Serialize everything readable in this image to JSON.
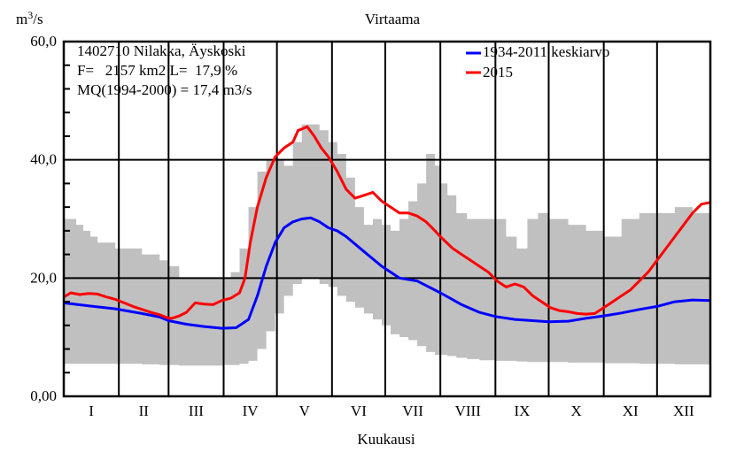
{
  "chart_data": {
    "type": "line",
    "title": "Virtaama",
    "ylabel_base": "m",
    "ylabel_sup": "3",
    "ylabel_rest": "/s",
    "xlabel": "Kuukausi",
    "ylim": [
      0,
      60
    ],
    "xlim": [
      1,
      365
    ],
    "y_ticks": [
      {
        "value": 0,
        "label": "0,00"
      },
      {
        "value": 20,
        "label": "20,0"
      },
      {
        "value": 40,
        "label": "40,0"
      },
      {
        "value": 60,
        "label": "60,0"
      }
    ],
    "y_minor_step": 4,
    "month_labels": [
      "I",
      "II",
      "III",
      "IV",
      "V",
      "VI",
      "VII",
      "VIII",
      "IX",
      "X",
      "XI",
      "XII"
    ],
    "month_starts": [
      1,
      32,
      60,
      91,
      121,
      152,
      182,
      213,
      244,
      274,
      305,
      335
    ],
    "grid": true,
    "info_lines": [
      "1402710 Nilakka, Äyskoski",
      "F=   2157 km2 L=  17,9 %",
      "MQ(1994-2000) = 17,4 m3/s"
    ],
    "legend_position": "top-right",
    "band": {
      "name": "min-max range",
      "color": "#c0c0c0",
      "x": [
        1,
        8,
        12,
        16,
        20,
        30,
        45,
        55,
        60,
        66,
        80,
        91,
        95,
        100,
        105,
        110,
        115,
        120,
        125,
        130,
        135,
        140,
        145,
        150,
        155,
        160,
        165,
        170,
        175,
        180,
        185,
        190,
        195,
        200,
        205,
        210,
        213,
        217,
        222,
        228,
        235,
        244,
        250,
        256,
        262,
        268,
        274,
        285,
        295,
        305,
        315,
        325,
        335,
        345,
        355,
        365
      ],
      "max": [
        30,
        29,
        28,
        27,
        26,
        25,
        24,
        23,
        22,
        20,
        20,
        20,
        21,
        25,
        32,
        38,
        40,
        40,
        39,
        43,
        46,
        46,
        45,
        43,
        41,
        37,
        32,
        29,
        30,
        29,
        28,
        30,
        33,
        36,
        41,
        39,
        36,
        34,
        31,
        30,
        30,
        30,
        27,
        25,
        30,
        31,
        30,
        29,
        28,
        27,
        30,
        31,
        31,
        32,
        31,
        30
      ],
      "min": [
        5.5,
        5.5,
        5.5,
        5.5,
        5.5,
        5.5,
        5.4,
        5.3,
        5.3,
        5.2,
        5.2,
        5.3,
        5.3,
        5.5,
        6,
        8,
        11,
        14,
        17,
        19,
        20,
        20,
        19,
        18.5,
        17,
        16,
        15,
        14,
        13,
        12,
        10.5,
        10,
        9.5,
        8.5,
        7.5,
        7,
        7,
        6.8,
        6.5,
        6.3,
        6.1,
        6,
        6,
        5.9,
        5.8,
        5.8,
        5.8,
        5.7,
        5.7,
        5.6,
        5.6,
        5.5,
        5.5,
        5.4,
        5.4,
        5.4
      ]
    },
    "series": [
      {
        "name": "1934-2011 keskiarvo",
        "color": "#0000ff",
        "x": [
          1,
          15,
          30,
          45,
          55,
          60,
          70,
          80,
          90,
          98,
          105,
          110,
          115,
          120,
          125,
          130,
          135,
          140,
          145,
          150,
          155,
          160,
          170,
          180,
          190,
          200,
          213,
          225,
          235,
          244,
          255,
          265,
          274,
          285,
          295,
          305,
          315,
          325,
          335,
          345,
          355,
          365
        ],
        "values": [
          15.8,
          15.3,
          14.8,
          14.0,
          13.4,
          12.8,
          12.2,
          11.8,
          11.5,
          11.6,
          13,
          17,
          22,
          26,
          28.5,
          29.5,
          30,
          30.2,
          29.5,
          28.5,
          28,
          27,
          24.5,
          22,
          20,
          19.5,
          17.5,
          15.5,
          14.2,
          13.5,
          13,
          12.8,
          12.6,
          12.7,
          13.2,
          13.6,
          14.1,
          14.7,
          15.2,
          16.0,
          16.3,
          16.2
        ]
      },
      {
        "name": "2015",
        "color": "#ff0000",
        "x": [
          1,
          5,
          10,
          15,
          20,
          25,
          30,
          40,
          50,
          55,
          60,
          62,
          66,
          70,
          75,
          80,
          85,
          90,
          95,
          100,
          103,
          106,
          110,
          115,
          120,
          125,
          130,
          133,
          135,
          138,
          142,
          146,
          150,
          155,
          160,
          165,
          170,
          175,
          180,
          185,
          190,
          195,
          200,
          205,
          210,
          213,
          220,
          225,
          230,
          235,
          240,
          245,
          250,
          255,
          260,
          265,
          270,
          275,
          280,
          285,
          290,
          295,
          300,
          305,
          310,
          315,
          320,
          325,
          330,
          335,
          340,
          345,
          350,
          355,
          360,
          365
        ],
        "values": [
          16.8,
          17.5,
          17.2,
          17.4,
          17.3,
          16.8,
          16.4,
          15.2,
          14.2,
          13.8,
          13.2,
          13.2,
          13.6,
          14.2,
          15.8,
          15.6,
          15.5,
          16.2,
          16.6,
          17.5,
          20,
          26,
          32,
          37,
          40.5,
          42,
          43,
          45,
          45.2,
          45.6,
          44,
          42,
          40.5,
          38,
          35,
          33.5,
          34,
          34.5,
          33,
          32,
          31,
          31,
          30.5,
          29.5,
          28,
          27,
          25,
          24,
          23,
          22,
          21,
          19.5,
          18.5,
          19,
          18.5,
          17,
          16,
          15,
          14.5,
          14.3,
          14,
          13.9,
          14,
          15,
          16,
          17,
          18,
          19.5,
          21,
          23,
          25,
          27,
          29,
          31,
          32.5,
          32.8
        ]
      }
    ]
  }
}
